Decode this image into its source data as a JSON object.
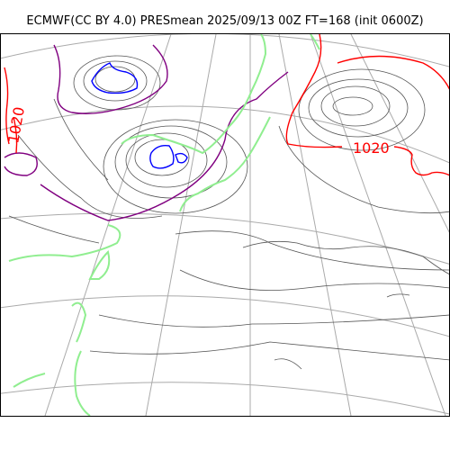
{
  "title": "ECMWF(CC BY 4.0) PRESmean 2025/09/13 00Z FT=168 (init 0600Z)",
  "isobar_labels": [
    {
      "text": "1020",
      "context": "high-pressure ridge over the northwest Pacific"
    },
    {
      "text": "1020",
      "context": "left edge, over the continent (rotated)"
    }
  ],
  "colors": {
    "isobar": "#555555",
    "isobar_high": "#ff0000",
    "isobar_low": "#0000ff",
    "isobar_mid": "#800080",
    "coastline": "#90ee90",
    "graticule": "#aaaaaa",
    "frame": "#000000"
  }
}
